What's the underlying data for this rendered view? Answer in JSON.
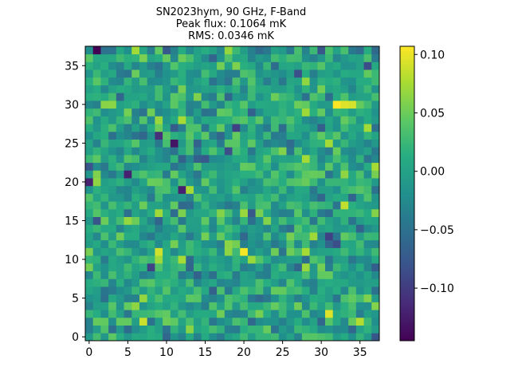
{
  "chart_data": {
    "type": "heatmap",
    "title_lines": [
      "SN2023hym, 90 GHz, F-Band",
      "Peak flux: 0.1064 mK",
      "RMS: 0.0346 mK"
    ],
    "nx": 38,
    "ny": 38,
    "xlim": [
      -0.5,
      37.5
    ],
    "ylim": [
      -0.5,
      37.5
    ],
    "x_ticks": [
      0,
      5,
      10,
      15,
      20,
      25,
      30,
      35
    ],
    "y_ticks": [
      0,
      5,
      10,
      15,
      20,
      25,
      30,
      35
    ],
    "x_tick_labels": [
      "0",
      "5",
      "10",
      "15",
      "20",
      "25",
      "30",
      "35"
    ],
    "y_tick_labels": [
      "0",
      "5",
      "10",
      "15",
      "20",
      "25",
      "30",
      "35"
    ],
    "colormap": "viridis",
    "vmin": -0.145,
    "vmax": 0.107,
    "colorbar_ticks": [
      0.1,
      0.05,
      0.0,
      -0.05,
      -0.1
    ],
    "colorbar_tick_labels": [
      "0.10",
      "0.05",
      "0.00",
      "−0.05",
      "−0.10"
    ],
    "highlights": [
      {
        "x": 32,
        "y": 30,
        "value": 0.1064
      },
      {
        "x": 33,
        "y": 30,
        "value": 0.095
      },
      {
        "x": 34,
        "y": 30,
        "value": 0.092
      },
      {
        "x": 20,
        "y": 11,
        "value": 0.104
      },
      {
        "x": 9,
        "y": 11,
        "value": 0.09
      },
      {
        "x": 31,
        "y": 3,
        "value": 0.095
      },
      {
        "x": 7,
        "y": 2,
        "value": 0.088
      },
      {
        "x": 33,
        "y": 17,
        "value": 0.085
      },
      {
        "x": 35,
        "y": 2,
        "value": 0.08
      },
      {
        "x": 1,
        "y": 37,
        "value": -0.145
      },
      {
        "x": 11,
        "y": 25,
        "value": -0.13
      },
      {
        "x": 12,
        "y": 19,
        "value": -0.12
      },
      {
        "x": 5,
        "y": 21,
        "value": -0.12
      },
      {
        "x": 9,
        "y": 26,
        "value": -0.11
      },
      {
        "x": 0,
        "y": 20,
        "value": -0.12
      }
    ]
  }
}
